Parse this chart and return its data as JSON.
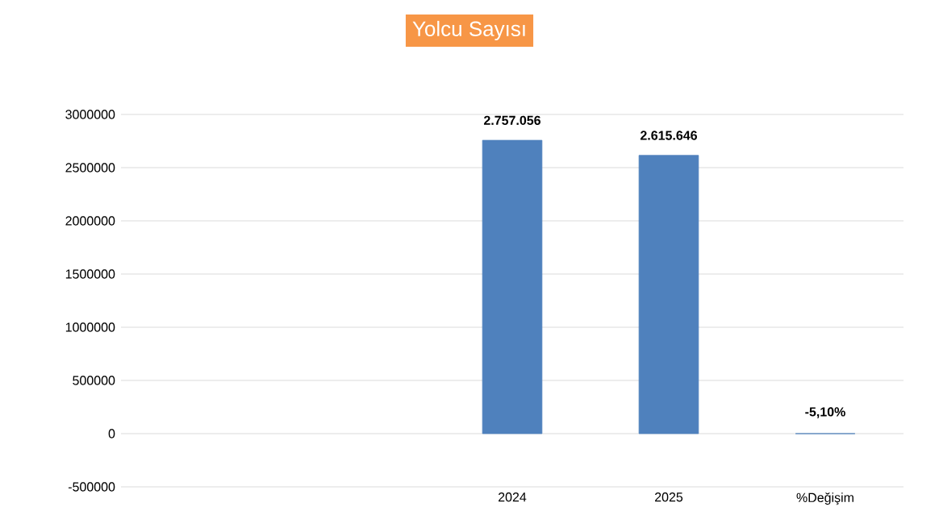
{
  "chart_data": {
    "type": "bar",
    "title": "Yolcu Sayısı",
    "categories": [
      null,
      null,
      "2024",
      "2025",
      "%Değişim"
    ],
    "values": [
      null,
      null,
      2757056,
      2615646,
      -5.1
    ],
    "value_labels": [
      null,
      null,
      "2.757.056",
      "2.615.646",
      "-5,10%"
    ],
    "color": "#4f81bd",
    "ylim": [
      -500000,
      3000000
    ],
    "yticks": [
      -500000,
      0,
      500000,
      1000000,
      1500000,
      2000000,
      2500000,
      3000000
    ],
    "grid": "y"
  }
}
